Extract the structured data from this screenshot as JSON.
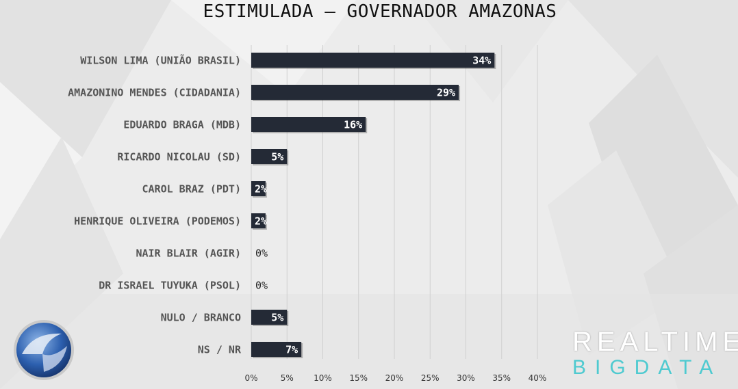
{
  "title": "ESTIMULADA – GOVERNADOR AMAZONAS",
  "chart_data": {
    "type": "bar",
    "orientation": "horizontal",
    "title": "ESTIMULADA – GOVERNADOR AMAZONAS",
    "categories": [
      "WILSON LIMA (UNIÃO BRASIL)",
      "AMAZONINO MENDES (CIDADANIA)",
      "EDUARDO BRAGA (MDB)",
      "RICARDO NICOLAU (SD)",
      "CAROL BRAZ (PDT)",
      "HENRIQUE OLIVEIRA (PODEMOS)",
      "NAIR BLAIR (AGIR)",
      "DR ISRAEL TUYUKA (PSOL)",
      "NULO / BRANCO",
      "NS / NR"
    ],
    "values": [
      34,
      29,
      16,
      5,
      2,
      2,
      0,
      0,
      5,
      7
    ],
    "data_labels": [
      "34%",
      "29%",
      "16%",
      "5%",
      "2%",
      "2%",
      "0%",
      "0%",
      "5%",
      "7%"
    ],
    "xlim": [
      0,
      40
    ],
    "xticks": [
      0,
      5,
      10,
      15,
      20,
      25,
      30,
      35,
      40
    ],
    "xtick_labels": [
      "0%",
      "5%",
      "10%",
      "15%",
      "20%",
      "25%",
      "30%",
      "35%",
      "40%"
    ],
    "grid": true,
    "bar_color": "#242a36",
    "label_color_inside": "#ffffff",
    "label_color_outside": "#222222"
  },
  "logos": {
    "left": "record-tv-logo",
    "right_line1": "REALTIME",
    "right_line2": "BIGDATA",
    "right_line2_color": "#4ecad0"
  }
}
